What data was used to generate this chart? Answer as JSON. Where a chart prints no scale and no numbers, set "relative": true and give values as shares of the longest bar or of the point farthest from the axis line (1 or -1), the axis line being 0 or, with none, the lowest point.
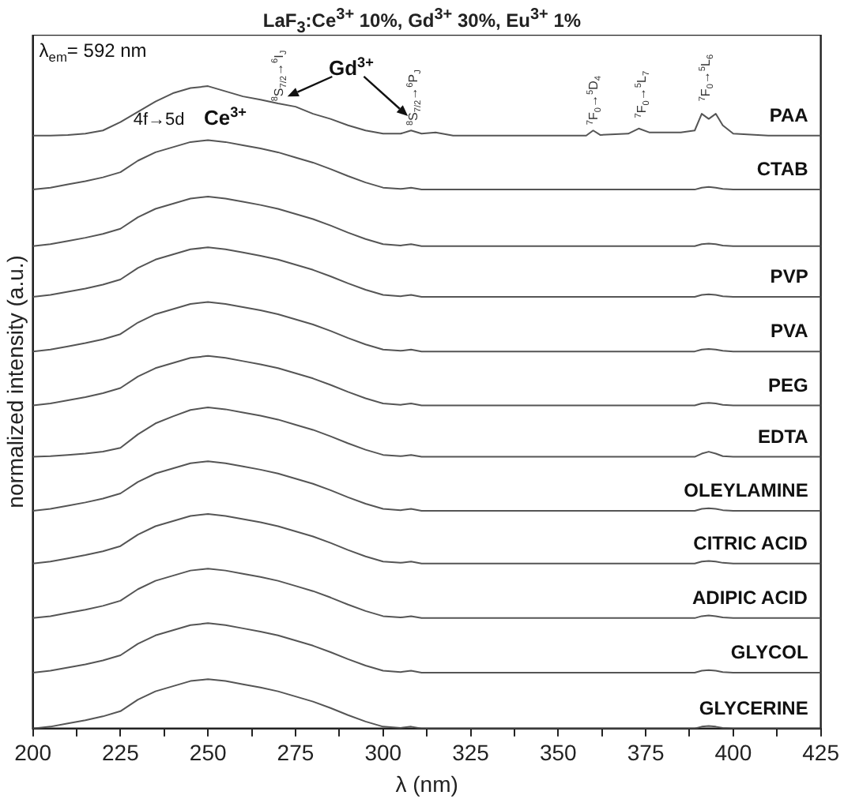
{
  "chart_data": {
    "type": "line",
    "title": "LaF$_{3}$:Ce$^{3+}$ 10%, Gd$^{3+}$ 30%, Eu$^{3+}$ 1%",
    "xlabel": "λ (nm)",
    "ylabel": "normalized intensity (a.u.)",
    "relative": true,
    "legend": false,
    "grid": false,
    "marker": "none",
    "line_style": "solid",
    "xlim": [
      200,
      425
    ],
    "xticks": [
      200,
      {
        "value": 212.5,
        "label": null
      },
      225,
      {
        "value": 237.5,
        "label": null
      },
      250,
      {
        "value": 262.5,
        "label": null
      },
      275,
      {
        "value": 287.5,
        "label": null
      },
      300,
      {
        "value": 312.5,
        "label": null
      },
      325,
      {
        "value": 337.5,
        "label": null
      },
      350,
      {
        "value": 362.5,
        "label": null
      },
      375,
      {
        "value": 387.5,
        "label": null
      },
      400,
      {
        "value": 412.5,
        "label": null
      },
      425
    ],
    "x": [
      200,
      205,
      210,
      215,
      220,
      225,
      230,
      235,
      240,
      245,
      250,
      255,
      260,
      265,
      270,
      275,
      280,
      285,
      290,
      295,
      300,
      305,
      308,
      311,
      315,
      320,
      330,
      340,
      350,
      358,
      360,
      362,
      370,
      373,
      376,
      385,
      389,
      391,
      393,
      395,
      397,
      400,
      410,
      425
    ],
    "annotations": [
      "λ$_{em}$= 592 nm",
      "4f→5d",
      "Ce$^{3+}$",
      "Gd$^{3+}$",
      "$^{8}$S$_{7/2}$→$^{6}$I$_{J}$",
      "$^{8}$S$_{7/2}$→$^{6}$P$_{J}$",
      "$^{7}$F$_{0}$→$^{5}$D$_{4}$",
      "$^{7}$F$_{0}$→$^{5}$L$_{7}$",
      "$^{7}$F$_{0}$→$^{5}$L$_{6}$"
    ],
    "series": [
      {
        "name": "PAA",
        "color": "#555555",
        "values": [
          0.923,
          0.923,
          0.924,
          0.926,
          0.931,
          0.944,
          0.96,
          0.976,
          0.989,
          0.997,
          1,
          0.992,
          0.984,
          0.979,
          0.973,
          0.968,
          0.957,
          0.949,
          0.939,
          0.931,
          0.926,
          0.926,
          0.931,
          0.926,
          0.928,
          0.923,
          0.923,
          0.923,
          0.923,
          0.923,
          0.931,
          0.924,
          0.926,
          0.934,
          0.928,
          0.928,
          0.931,
          0.957,
          0.949,
          0.957,
          0.939,
          0.926,
          0.923,
          0.923
        ]
      },
      {
        "name": "CTAB",
        "color": "#555555",
        "values": [
          0.839,
          0.842,
          0.847,
          0.852,
          0.858,
          0.866,
          0.884,
          0.897,
          0.905,
          0.913,
          0.916,
          0.913,
          0.908,
          0.903,
          0.897,
          0.889,
          0.881,
          0.871,
          0.86,
          0.85,
          0.842,
          0.84,
          0.842,
          0.839,
          0.839,
          0.839,
          0.839,
          0.839,
          0.839,
          0.839,
          0.839,
          0.839,
          0.839,
          0.839,
          0.839,
          0.839,
          0.839,
          0.842,
          0.843,
          0.842,
          0.84,
          0.839,
          0.839,
          0.839
        ]
      },
      {
        "color": "#555555",
        "values": [
          0.751,
          0.754,
          0.759,
          0.764,
          0.77,
          0.778,
          0.796,
          0.809,
          0.817,
          0.825,
          0.828,
          0.825,
          0.82,
          0.815,
          0.809,
          0.801,
          0.793,
          0.783,
          0.772,
          0.762,
          0.754,
          0.752,
          0.754,
          0.751,
          0.751,
          0.751,
          0.751,
          0.751,
          0.751,
          0.751,
          0.751,
          0.751,
          0.751,
          0.751,
          0.751,
          0.751,
          0.751,
          0.754,
          0.755,
          0.754,
          0.752,
          0.751,
          0.751,
          0.751
        ]
      },
      {
        "name": "PVP",
        "color": "#555555",
        "values": [
          0.672,
          0.675,
          0.68,
          0.685,
          0.691,
          0.699,
          0.717,
          0.73,
          0.738,
          0.746,
          0.749,
          0.746,
          0.741,
          0.736,
          0.73,
          0.722,
          0.714,
          0.704,
          0.693,
          0.683,
          0.675,
          0.673,
          0.675,
          0.672,
          0.672,
          0.672,
          0.672,
          0.672,
          0.672,
          0.672,
          0.672,
          0.672,
          0.672,
          0.672,
          0.672,
          0.672,
          0.672,
          0.675,
          0.676,
          0.675,
          0.673,
          0.672,
          0.672,
          0.672
        ]
      },
      {
        "name": "PVA",
        "color": "#555555",
        "values": [
          0.587,
          0.59,
          0.595,
          0.6,
          0.606,
          0.614,
          0.632,
          0.645,
          0.653,
          0.661,
          0.664,
          0.661,
          0.656,
          0.651,
          0.645,
          0.637,
          0.629,
          0.619,
          0.608,
          0.598,
          0.59,
          0.588,
          0.59,
          0.587,
          0.587,
          0.587,
          0.587,
          0.587,
          0.587,
          0.587,
          0.587,
          0.587,
          0.587,
          0.587,
          0.587,
          0.587,
          0.587,
          0.59,
          0.591,
          0.59,
          0.588,
          0.587,
          0.587,
          0.587
        ]
      },
      {
        "name": "PEG",
        "color": "#555555",
        "values": [
          0.503,
          0.506,
          0.511,
          0.516,
          0.522,
          0.53,
          0.548,
          0.561,
          0.569,
          0.577,
          0.58,
          0.577,
          0.572,
          0.567,
          0.561,
          0.553,
          0.545,
          0.535,
          0.524,
          0.514,
          0.506,
          0.504,
          0.506,
          0.503,
          0.503,
          0.503,
          0.503,
          0.503,
          0.503,
          0.503,
          0.503,
          0.503,
          0.503,
          0.503,
          0.503,
          0.503,
          0.503,
          0.506,
          0.507,
          0.506,
          0.504,
          0.503,
          0.503,
          0.503
        ]
      },
      {
        "name": "EDTA",
        "color": "#555555",
        "values": [
          0.423,
          0.424,
          0.426,
          0.428,
          0.431,
          0.437,
          0.458,
          0.475,
          0.486,
          0.496,
          0.5,
          0.497,
          0.492,
          0.487,
          0.481,
          0.473,
          0.465,
          0.455,
          0.444,
          0.434,
          0.426,
          0.424,
          0.426,
          0.423,
          0.423,
          0.423,
          0.423,
          0.423,
          0.423,
          0.423,
          0.423,
          0.423,
          0.423,
          0.423,
          0.423,
          0.423,
          0.423,
          0.428,
          0.431,
          0.428,
          0.424,
          0.423,
          0.423,
          0.423
        ]
      },
      {
        "name": "OLEYLAMINE",
        "color": "#555555",
        "values": [
          0.339,
          0.342,
          0.347,
          0.352,
          0.358,
          0.366,
          0.384,
          0.397,
          0.405,
          0.413,
          0.416,
          0.413,
          0.408,
          0.403,
          0.397,
          0.389,
          0.381,
          0.371,
          0.36,
          0.35,
          0.342,
          0.34,
          0.342,
          0.339,
          0.339,
          0.339,
          0.339,
          0.339,
          0.339,
          0.339,
          0.339,
          0.339,
          0.339,
          0.339,
          0.339,
          0.339,
          0.339,
          0.342,
          0.343,
          0.342,
          0.34,
          0.339,
          0.339,
          0.339
        ]
      },
      {
        "name": "CITRIC ACID",
        "color": "#555555",
        "values": [
          0.257,
          0.26,
          0.265,
          0.27,
          0.276,
          0.284,
          0.302,
          0.315,
          0.323,
          0.331,
          0.334,
          0.331,
          0.326,
          0.321,
          0.315,
          0.307,
          0.299,
          0.289,
          0.278,
          0.268,
          0.26,
          0.258,
          0.26,
          0.257,
          0.257,
          0.257,
          0.257,
          0.257,
          0.257,
          0.257,
          0.257,
          0.257,
          0.257,
          0.257,
          0.257,
          0.257,
          0.257,
          0.26,
          0.261,
          0.26,
          0.258,
          0.257,
          0.257,
          0.257
        ]
      },
      {
        "name": "ADIPIC ACID",
        "color": "#555555",
        "values": [
          0.172,
          0.175,
          0.18,
          0.185,
          0.191,
          0.199,
          0.217,
          0.23,
          0.238,
          0.246,
          0.249,
          0.246,
          0.241,
          0.236,
          0.23,
          0.222,
          0.214,
          0.204,
          0.193,
          0.183,
          0.175,
          0.173,
          0.175,
          0.172,
          0.172,
          0.172,
          0.172,
          0.172,
          0.172,
          0.172,
          0.172,
          0.172,
          0.172,
          0.172,
          0.172,
          0.172,
          0.172,
          0.175,
          0.176,
          0.175,
          0.173,
          0.172,
          0.172,
          0.172
        ]
      },
      {
        "name": "GLYCOL",
        "color": "#555555",
        "values": [
          0.087,
          0.09,
          0.095,
          0.1,
          0.106,
          0.114,
          0.132,
          0.145,
          0.153,
          0.161,
          0.164,
          0.161,
          0.156,
          0.151,
          0.145,
          0.137,
          0.129,
          0.119,
          0.108,
          0.098,
          0.09,
          0.088,
          0.09,
          0.087,
          0.087,
          0.087,
          0.087,
          0.087,
          0.087,
          0.087,
          0.087,
          0.087,
          0.087,
          0.087,
          0.087,
          0.087,
          0.087,
          0.09,
          0.091,
          0.09,
          0.088,
          0.087,
          0.087,
          0.087
        ]
      },
      {
        "name": "GLYCERINE",
        "color": "#555555",
        "values": [
          0,
          0.003,
          0.008,
          0.013,
          0.019,
          0.027,
          0.045,
          0.058,
          0.066,
          0.074,
          0.077,
          0.074,
          0.069,
          0.064,
          0.058,
          0.05,
          0.042,
          0.032,
          0.021,
          0.011,
          0.003,
          0.001,
          0.003,
          0,
          0,
          0,
          0,
          0,
          0,
          0,
          0,
          0,
          0,
          0,
          0,
          0,
          0,
          0.003,
          0.004,
          0.003,
          0.001,
          0,
          0,
          0
        ]
      }
    ]
  }
}
